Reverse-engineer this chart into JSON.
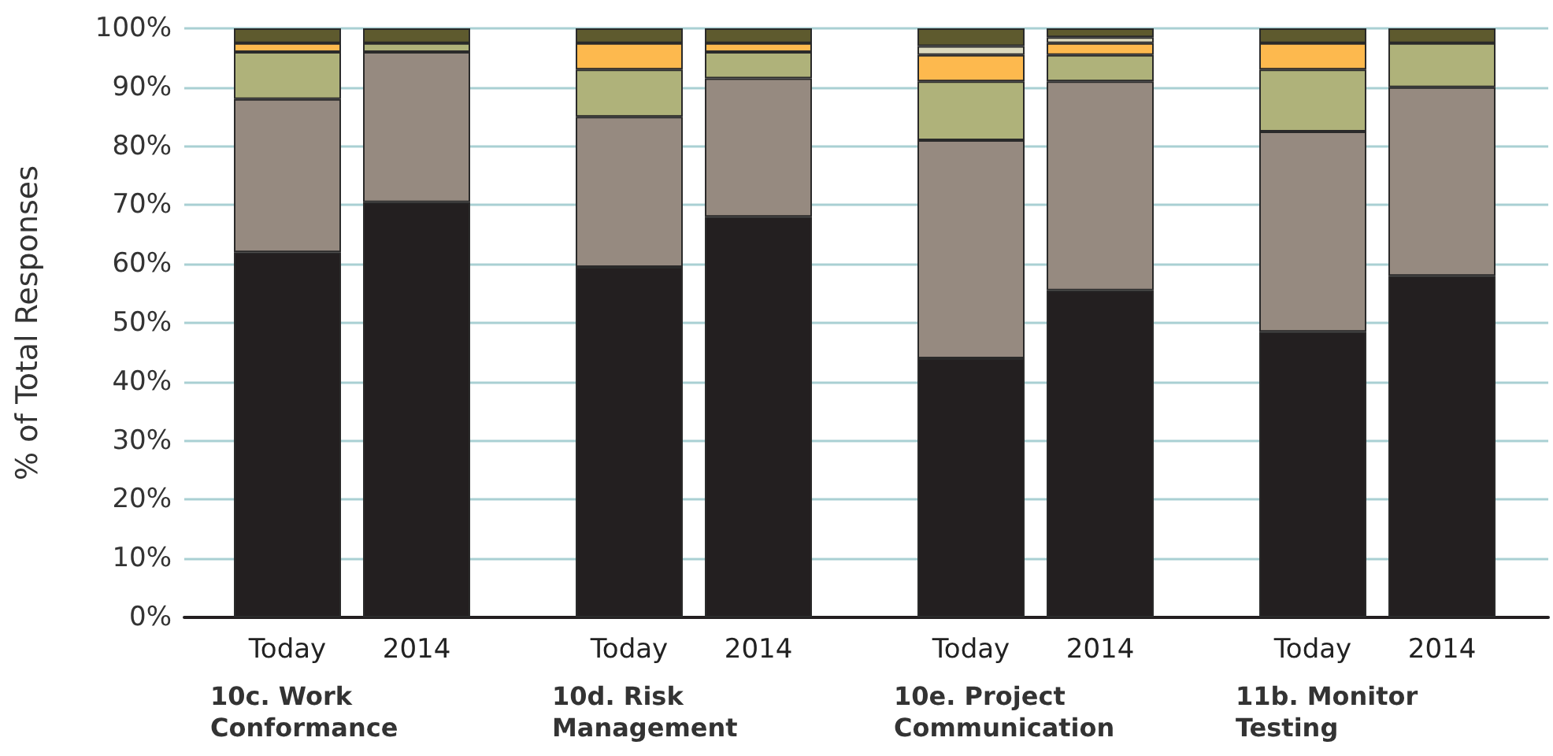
{
  "chart_data": {
    "type": "bar",
    "stacked": true,
    "ylabel": "% of Total Responses",
    "categories": [
      "Today",
      "2014",
      "Today",
      "2014",
      "Today",
      "2014",
      "Today",
      "2014"
    ],
    "annotations": [
      "10c. Work Conformance",
      "10d. Risk Management",
      "10e. Project Communication",
      "11b. Monitor Testing"
    ],
    "series": [
      {
        "color": "#231f20",
        "values": [
          62,
          70.5,
          59.5,
          68,
          44,
          55.5,
          48.5,
          58
        ]
      },
      {
        "color": "#968a80",
        "values": [
          26,
          25.5,
          25.5,
          23.5,
          37,
          35.5,
          34,
          32
        ]
      },
      {
        "color": "#afb27a",
        "values": [
          8,
          1.5,
          8,
          4.5,
          10,
          4.5,
          10.5,
          7.5
        ]
      },
      {
        "color": "#fdb94e",
        "values": [
          1.5,
          0,
          4.5,
          1.5,
          4.5,
          2,
          4.5,
          0
        ]
      },
      {
        "color": "#dcd9bd",
        "values": [
          0,
          0,
          0,
          0,
          1.5,
          1,
          0,
          0
        ]
      },
      {
        "color": "#5e5a2e",
        "values": [
          2.5,
          2.5,
          2.5,
          2.5,
          3,
          1.5,
          2.5,
          2.5
        ]
      }
    ],
    "ylim": [
      0,
      100
    ],
    "yticks": [
      {
        "value": 0,
        "label": "0%"
      },
      {
        "value": 10,
        "label": "10%"
      },
      {
        "value": 20,
        "label": "20%"
      },
      {
        "value": 30,
        "label": "30%"
      },
      {
        "value": 40,
        "label": "40%"
      },
      {
        "value": 50,
        "label": "50%"
      },
      {
        "value": 60,
        "label": "60%"
      },
      {
        "value": 70,
        "label": "70%"
      },
      {
        "value": 80,
        "label": "80%"
      },
      {
        "value": 90,
        "label": "90%"
      },
      {
        "value": 100,
        "label": "100%"
      }
    ],
    "grid": "y"
  }
}
